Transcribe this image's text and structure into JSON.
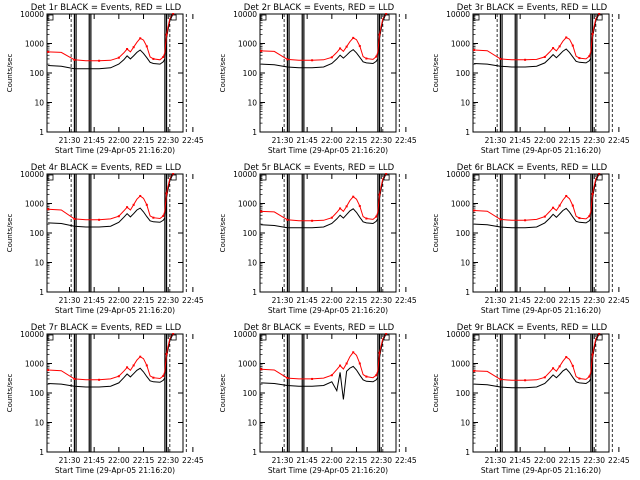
{
  "colors": {
    "events": "#000000",
    "lld": "#ff0000",
    "background": "#ffffff",
    "axes": "#000000"
  },
  "x_tick_labels": [
    "21:30",
    "21:45",
    "22:00",
    "22:15",
    "22:30",
    "22:45"
  ],
  "y_tick_labels": [
    "1",
    "10",
    "100",
    "1000",
    "10000"
  ],
  "ylabel": "Counts/sec",
  "xlabel": "Start Time (29-Apr-05 21:16:20)",
  "chart_data": [
    {
      "type": "line",
      "title": "Det 1r BLACK = Events, RED = LLD",
      "xlabel": "Start Time (29-Apr-05 21:16:20)",
      "ylabel": "Counts/sec",
      "ylog": true,
      "ylim": [
        1,
        10000
      ],
      "x": [
        "21:17",
        "21:25",
        "21:33",
        "21:40",
        "21:48",
        "21:55",
        "22:00",
        "22:03",
        "22:05",
        "22:07",
        "22:09",
        "22:11",
        "22:13",
        "22:15",
        "22:17",
        "22:19",
        "22:21",
        "22:25",
        "22:27",
        "22:28",
        "22:29",
        "22:31",
        "22:33"
      ],
      "series": [
        {
          "name": "BLACK = Events",
          "values": [
            180,
            170,
            140,
            140,
            140,
            150,
            200,
            280,
            380,
            300,
            380,
            500,
            600,
            460,
            330,
            230,
            210,
            200,
            240,
            300,
            1500,
            6000,
            10000
          ]
        },
        {
          "name": "RED = LLD",
          "values": [
            520,
            500,
            280,
            260,
            260,
            270,
            330,
            480,
            650,
            520,
            750,
            1100,
            1500,
            1300,
            800,
            350,
            300,
            280,
            350,
            500,
            2000,
            7000,
            10000
          ]
        }
      ]
    },
    {
      "type": "line",
      "title": "Det 2r BLACK = Events, RED = LLD",
      "xlabel": "Start Time (29-Apr-05 21:16:20)",
      "ylabel": "Counts/sec",
      "ylog": true,
      "ylim": [
        1,
        10000
      ],
      "x": [
        "21:17",
        "21:25",
        "21:33",
        "21:40",
        "21:48",
        "21:55",
        "22:00",
        "22:03",
        "22:05",
        "22:07",
        "22:09",
        "22:11",
        "22:13",
        "22:15",
        "22:17",
        "22:19",
        "22:21",
        "22:25",
        "22:27",
        "22:28",
        "22:29",
        "22:31",
        "22:33"
      ],
      "series": [
        {
          "name": "BLACK = Events",
          "values": [
            200,
            190,
            160,
            150,
            150,
            160,
            210,
            300,
            400,
            320,
            400,
            520,
            620,
            480,
            340,
            240,
            220,
            210,
            250,
            310,
            1500,
            6000,
            10000
          ]
        },
        {
          "name": "RED = LLD",
          "values": [
            560,
            540,
            290,
            270,
            270,
            280,
            340,
            500,
            680,
            540,
            780,
            1150,
            1550,
            1350,
            820,
            360,
            310,
            290,
            360,
            520,
            2000,
            7000,
            10000
          ]
        }
      ]
    },
    {
      "type": "line",
      "title": "Det 3r BLACK = Events, RED = LLD",
      "xlabel": "Start Time (29-Apr-05 21:16:20)",
      "ylabel": "Counts/sec",
      "ylog": true,
      "ylim": [
        1,
        10000
      ],
      "x": [
        "21:17",
        "21:25",
        "21:33",
        "21:40",
        "21:48",
        "21:55",
        "22:00",
        "22:03",
        "22:05",
        "22:07",
        "22:09",
        "22:11",
        "22:13",
        "22:15",
        "22:17",
        "22:19",
        "22:21",
        "22:25",
        "22:27",
        "22:28",
        "22:29",
        "22:31",
        "22:33"
      ],
      "series": [
        {
          "name": "BLACK = Events",
          "values": [
            210,
            200,
            170,
            160,
            160,
            170,
            220,
            320,
            420,
            330,
            420,
            550,
            650,
            500,
            350,
            250,
            230,
            220,
            260,
            320,
            1600,
            6000,
            10000
          ]
        },
        {
          "name": "RED = LLD",
          "values": [
            600,
            570,
            300,
            280,
            280,
            290,
            350,
            520,
            700,
            560,
            800,
            1200,
            1600,
            1400,
            850,
            370,
            320,
            300,
            370,
            540,
            2100,
            7000,
            10000
          ]
        }
      ]
    },
    {
      "type": "line",
      "title": "Det 4r BLACK = Events, RED = LLD",
      "xlabel": "Start Time (29-Apr-05 21:16:20)",
      "ylabel": "Counts/sec",
      "ylog": true,
      "ylim": [
        1,
        10000
      ],
      "x": [
        "21:17",
        "21:25",
        "21:33",
        "21:40",
        "21:48",
        "21:55",
        "22:00",
        "22:03",
        "22:05",
        "22:07",
        "22:09",
        "22:11",
        "22:13",
        "22:15",
        "22:17",
        "22:19",
        "22:21",
        "22:25",
        "22:27",
        "22:28",
        "22:29",
        "22:31",
        "22:33"
      ],
      "series": [
        {
          "name": "BLACK = Events",
          "values": [
            220,
            210,
            170,
            160,
            160,
            170,
            230,
            340,
            450,
            350,
            450,
            600,
            700,
            520,
            360,
            260,
            240,
            230,
            270,
            330,
            1600,
            6000,
            10000
          ]
        },
        {
          "name": "RED = LLD",
          "values": [
            640,
            600,
            300,
            280,
            280,
            300,
            370,
            560,
            750,
            600,
            900,
            1400,
            1800,
            1500,
            900,
            380,
            330,
            310,
            380,
            560,
            2200,
            7000,
            10000
          ]
        }
      ]
    },
    {
      "type": "line",
      "title": "Det 5r BLACK = Events, RED = LLD",
      "xlabel": "Start Time (29-Apr-05 21:16:20)",
      "ylabel": "Counts/sec",
      "ylog": true,
      "ylim": [
        1,
        10000
      ],
      "x": [
        "21:17",
        "21:25",
        "21:33",
        "21:40",
        "21:48",
        "21:55",
        "22:00",
        "22:03",
        "22:05",
        "22:07",
        "22:09",
        "22:11",
        "22:13",
        "22:15",
        "22:17",
        "22:19",
        "22:21",
        "22:25",
        "22:27",
        "22:28",
        "22:29",
        "22:31",
        "22:33"
      ],
      "series": [
        {
          "name": "BLACK = Events",
          "values": [
            190,
            180,
            150,
            150,
            150,
            160,
            210,
            300,
            400,
            320,
            420,
            560,
            660,
            500,
            340,
            240,
            220,
            210,
            250,
            310,
            1500,
            6000,
            10000
          ]
        },
        {
          "name": "RED = LLD",
          "values": [
            540,
            520,
            280,
            260,
            260,
            270,
            330,
            500,
            680,
            540,
            800,
            1250,
            1700,
            1400,
            820,
            360,
            310,
            290,
            360,
            520,
            2000,
            7000,
            10000
          ]
        }
      ]
    },
    {
      "type": "line",
      "title": "Det 6r BLACK = Events, RED = LLD",
      "xlabel": "Start Time (29-Apr-05 21:16:20)",
      "ylabel": "Counts/sec",
      "ylog": true,
      "ylim": [
        1,
        10000
      ],
      "x": [
        "21:17",
        "21:25",
        "21:33",
        "21:40",
        "21:48",
        "21:55",
        "22:00",
        "22:03",
        "22:05",
        "22:07",
        "22:09",
        "22:11",
        "22:13",
        "22:15",
        "22:17",
        "22:19",
        "22:21",
        "22:25",
        "22:27",
        "22:28",
        "22:29",
        "22:31",
        "22:33"
      ],
      "series": [
        {
          "name": "BLACK = Events",
          "values": [
            200,
            190,
            160,
            150,
            150,
            160,
            220,
            320,
            430,
            340,
            440,
            580,
            680,
            510,
            350,
            250,
            230,
            220,
            260,
            320,
            1500,
            6000,
            10000
          ]
        },
        {
          "name": "RED = LLD",
          "values": [
            580,
            550,
            290,
            270,
            270,
            290,
            360,
            540,
            720,
            580,
            850,
            1300,
            1800,
            1450,
            850,
            370,
            320,
            300,
            370,
            540,
            2100,
            7000,
            10000
          ]
        }
      ]
    },
    {
      "type": "line",
      "title": "Det 7r BLACK = Events, RED = LLD",
      "xlabel": "Start Time (29-Apr-05 21:16:20)",
      "ylabel": "Counts/sec",
      "ylog": true,
      "ylim": [
        1,
        10000
      ],
      "x": [
        "21:17",
        "21:25",
        "21:33",
        "21:40",
        "21:48",
        "21:55",
        "22:00",
        "22:03",
        "22:05",
        "22:07",
        "22:09",
        "22:11",
        "22:13",
        "22:15",
        "22:17",
        "22:19",
        "22:21",
        "22:25",
        "22:27",
        "22:28",
        "22:29",
        "22:31",
        "22:33"
      ],
      "series": [
        {
          "name": "BLACK = Events",
          "values": [
            210,
            200,
            170,
            160,
            160,
            170,
            220,
            330,
            440,
            350,
            450,
            590,
            690,
            520,
            360,
            260,
            240,
            230,
            270,
            330,
            1600,
            6000,
            10000
          ]
        },
        {
          "name": "RED = LLD",
          "values": [
            600,
            570,
            300,
            280,
            280,
            300,
            370,
            550,
            740,
            590,
            860,
            1300,
            1700,
            1450,
            860,
            380,
            330,
            310,
            380,
            550,
            2100,
            7000,
            10000
          ]
        }
      ]
    },
    {
      "type": "line",
      "title": "Det 8r BLACK = Events, RED = LLD",
      "xlabel": "Start Time (29-Apr-05 21:16:20)",
      "ylabel": "Counts/sec",
      "ylog": true,
      "ylim": [
        1,
        10000
      ],
      "x": [
        "21:17",
        "21:25",
        "21:33",
        "21:40",
        "21:48",
        "21:55",
        "22:00",
        "22:03",
        "22:05",
        "22:07",
        "22:09",
        "22:11",
        "22:13",
        "22:15",
        "22:17",
        "22:19",
        "22:21",
        "22:25",
        "22:27",
        "22:28",
        "22:29",
        "22:31",
        "22:33"
      ],
      "series": [
        {
          "name": "BLACK = Events",
          "values": [
            220,
            210,
            180,
            170,
            170,
            180,
            240,
            120,
            500,
            60,
            550,
            700,
            800,
            600,
            400,
            280,
            250,
            240,
            280,
            340,
            1600,
            6000,
            10000
          ]
        },
        {
          "name": "RED = LLD",
          "values": [
            640,
            600,
            320,
            300,
            300,
            320,
            400,
            620,
            850,
            650,
            1000,
            1700,
            2400,
            1900,
            1000,
            420,
            360,
            330,
            400,
            580,
            2300,
            7000,
            10000
          ]
        }
      ]
    },
    {
      "type": "line",
      "title": "Det 9r BLACK = Events, RED = LLD",
      "xlabel": "Start Time (29-Apr-05 21:16:20)",
      "ylabel": "Counts/sec",
      "ylog": true,
      "ylim": [
        1,
        10000
      ],
      "x": [
        "21:17",
        "21:25",
        "21:33",
        "21:40",
        "21:48",
        "21:55",
        "22:00",
        "22:03",
        "22:05",
        "22:07",
        "22:09",
        "22:11",
        "22:13",
        "22:15",
        "22:17",
        "22:19",
        "22:21",
        "22:25",
        "22:27",
        "22:28",
        "22:29",
        "22:31",
        "22:33"
      ],
      "series": [
        {
          "name": "BLACK = Events",
          "values": [
            200,
            190,
            160,
            150,
            150,
            160,
            210,
            310,
            410,
            330,
            420,
            560,
            660,
            500,
            340,
            240,
            220,
            210,
            250,
            310,
            1500,
            6000,
            10000
          ]
        },
        {
          "name": "RED = LLD",
          "values": [
            560,
            540,
            290,
            270,
            270,
            280,
            340,
            510,
            690,
            550,
            800,
            1200,
            1650,
            1380,
            830,
            360,
            310,
            290,
            360,
            520,
            2000,
            7000,
            10000
          ]
        }
      ]
    }
  ]
}
